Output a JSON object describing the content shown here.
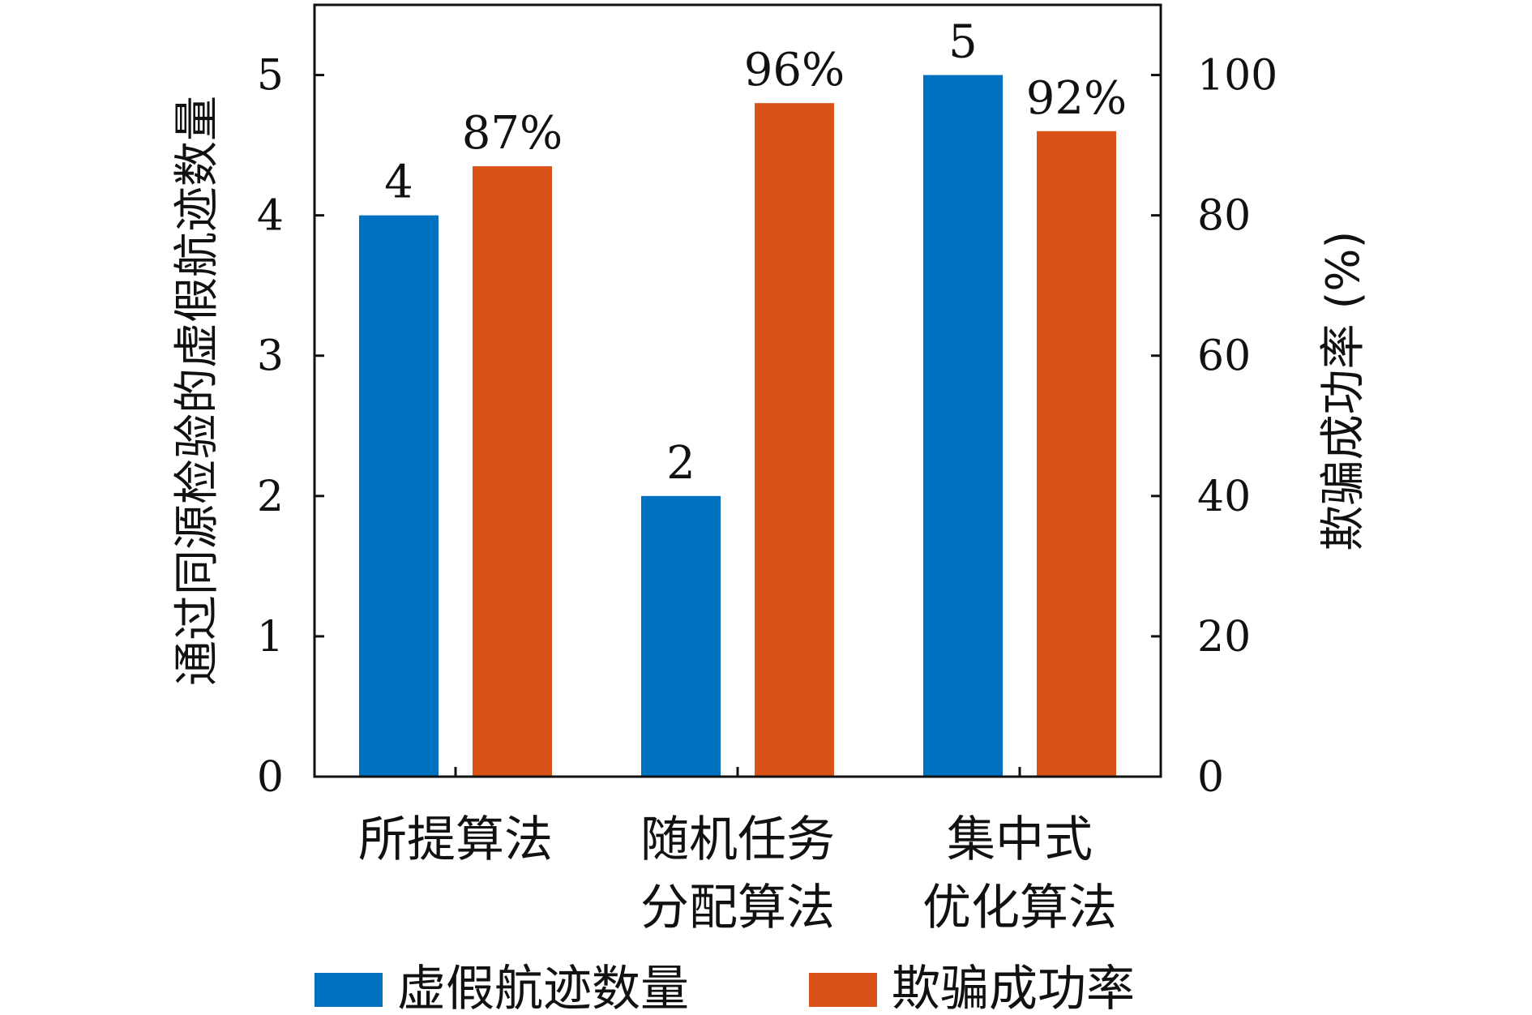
{
  "chart_data": {
    "type": "bar",
    "categories": [
      [
        "所提算法"
      ],
      [
        "随机任务",
        "分配算法"
      ],
      [
        "集中式",
        "优化算法"
      ]
    ],
    "series": [
      {
        "name": "虚假航迹数量",
        "axis": "left",
        "color": "#0070C0",
        "values": [
          4,
          2,
          5
        ],
        "data_labels": [
          "4",
          "2",
          "5"
        ]
      },
      {
        "name": "欺骗成功率",
        "axis": "right",
        "color": "#D95319",
        "values": [
          87,
          96,
          92
        ],
        "data_labels": [
          "87%",
          "96%",
          "92%"
        ]
      }
    ],
    "ylabel_left": "通过同源检验的虚假航迹数量",
    "ylabel_right": "欺骗成功率 (%)",
    "ylim_left": [
      0,
      5.5
    ],
    "ylim_right": [
      0,
      110
    ],
    "yticks_left": [
      "0",
      "1",
      "2",
      "3",
      "4",
      "5"
    ],
    "yticks_right": [
      "0",
      "20",
      "40",
      "60",
      "80",
      "100"
    ],
    "grid": false,
    "legend_position": "bottom"
  }
}
